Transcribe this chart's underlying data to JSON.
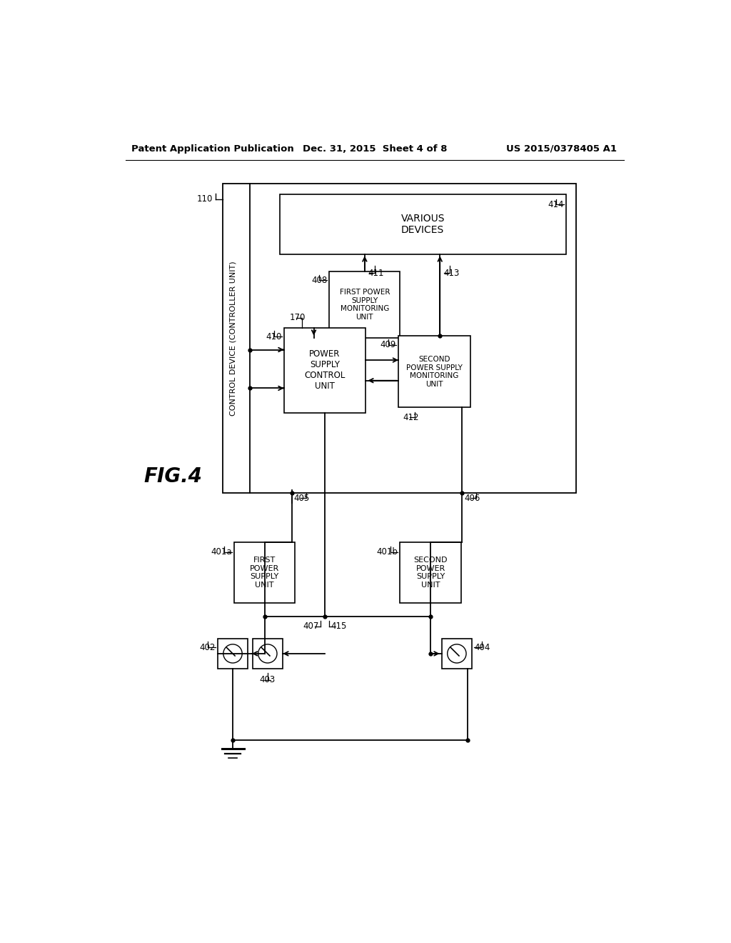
{
  "header": {
    "left": "Patent Application Publication",
    "center": "Dec. 31, 2015  Sheet 4 of 8",
    "right": "US 2015/0378405 A1"
  },
  "bg_color": "#ffffff",
  "line_color": "#000000"
}
